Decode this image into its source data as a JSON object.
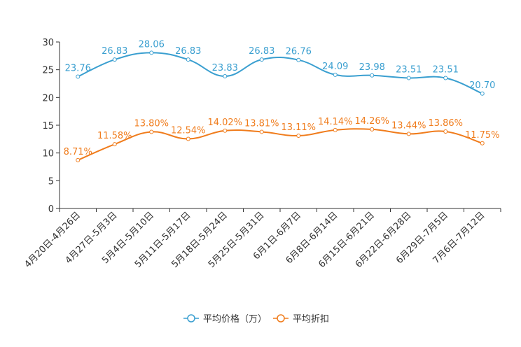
{
  "chart_data": {
    "type": "line",
    "title": "",
    "xlabel": "",
    "ylabel": "",
    "ylim": [
      0,
      30
    ],
    "yticks": [
      0,
      5,
      10,
      15,
      20,
      25,
      30
    ],
    "grid": false,
    "legend_position": "bottom-center",
    "categories": [
      "4月20日-4月26日",
      "4月27日-5月3日",
      "5月4日-5月10日",
      "5月11日-5月17日",
      "5月18日-5月24日",
      "5月25日-5月31日",
      "6月1日-6月7日",
      "6月8日-6月14日",
      "6月15日-6月21日",
      "6月22日-6月28日",
      "6月29日-7月5日",
      "7月6日-7月12日"
    ],
    "series": [
      {
        "name": "平均价格（万）",
        "color": "#3a9fd0",
        "values": [
          23.76,
          26.83,
          28.06,
          26.83,
          23.83,
          26.83,
          26.76,
          24.09,
          23.98,
          23.51,
          23.51,
          20.7
        ],
        "labels": [
          "23.76",
          "26.83",
          "28.06",
          "26.83",
          "23.83",
          "26.83",
          "26.76",
          "24.09",
          "23.98",
          "23.51",
          "23.51",
          "20.70"
        ]
      },
      {
        "name": "平均折扣",
        "color": "#f07c1c",
        "values": [
          8.71,
          11.58,
          13.8,
          12.54,
          14.02,
          13.81,
          13.11,
          14.14,
          14.26,
          13.44,
          13.86,
          11.75
        ],
        "labels": [
          "8.71%",
          "11.58%",
          "13.80%",
          "12.54%",
          "14.02%",
          "13.81%",
          "13.11%",
          "14.14%",
          "14.26%",
          "13.44%",
          "13.86%",
          "11.75%"
        ]
      }
    ]
  }
}
